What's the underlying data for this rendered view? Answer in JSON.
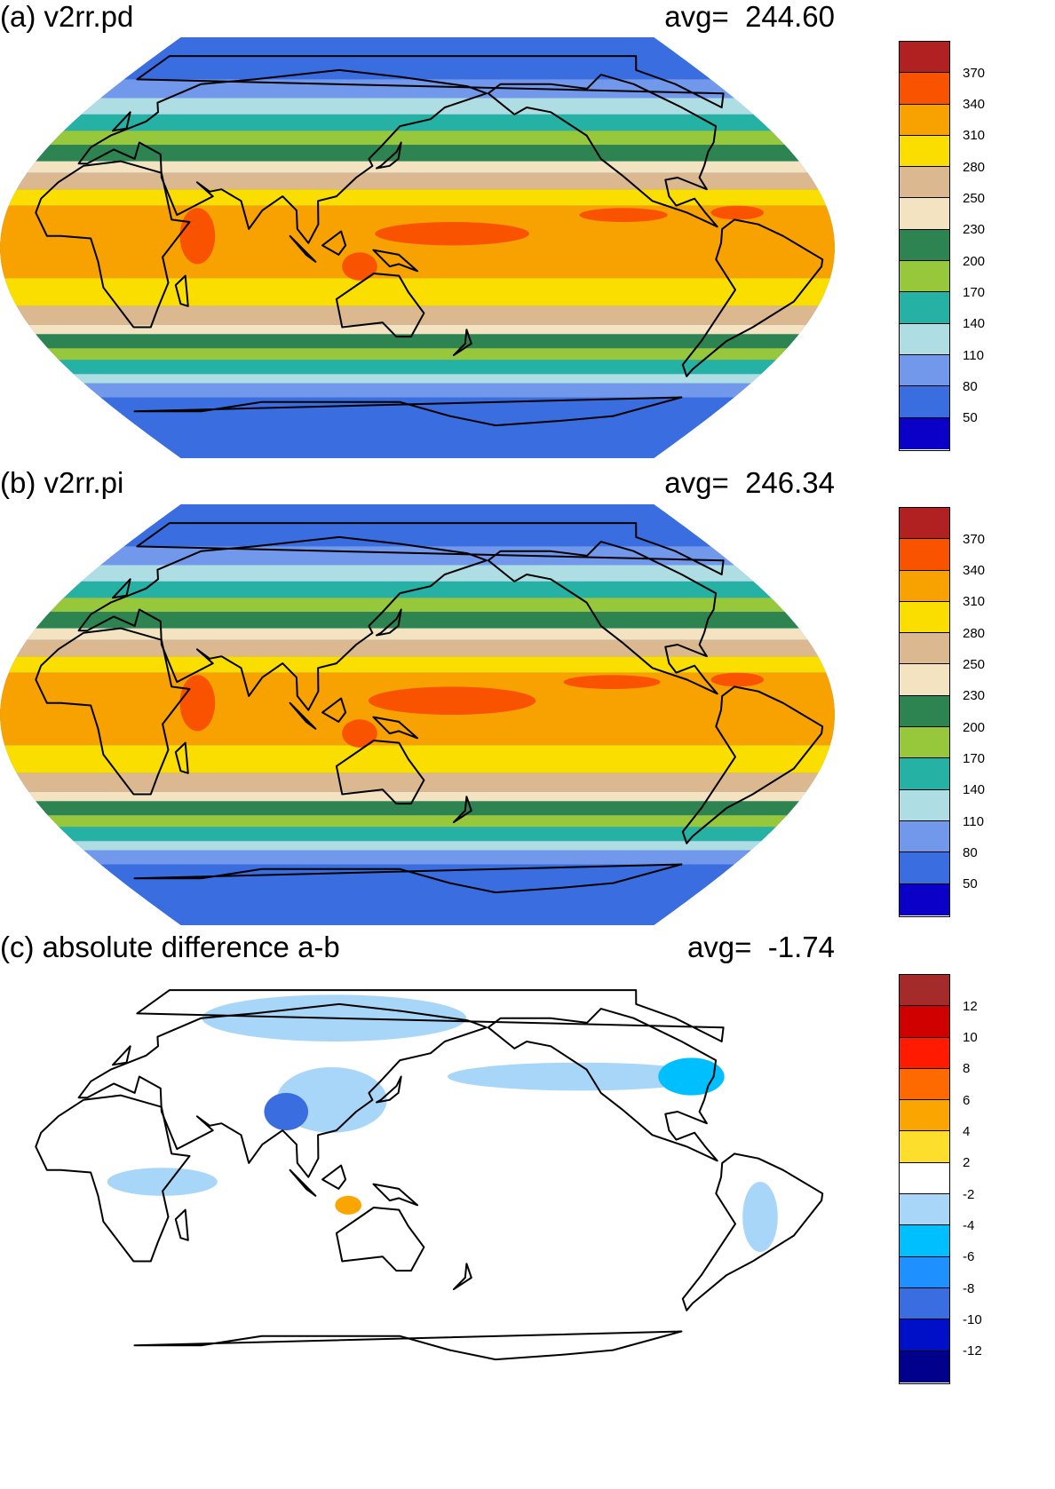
{
  "panels": [
    {
      "title": "(a) v2rr.pd",
      "avg_label": "avg=",
      "avg_value": "244.60",
      "colorbar": {
        "colors": [
          "#0a00c8",
          "#3a6ee0",
          "#7198ea",
          "#aedee3",
          "#25b1a3",
          "#97c83b",
          "#2d8450",
          "#f4e3c0",
          "#dbb88f",
          "#fade00",
          "#f7a200",
          "#f95300",
          "#b12121"
        ],
        "labels": [
          "50",
          "80",
          "110",
          "140",
          "170",
          "200",
          "230",
          "250",
          "280",
          "310",
          "340",
          "370"
        ]
      }
    },
    {
      "title": "(b) v2rr.pi",
      "avg_label": "avg=",
      "avg_value": "246.34",
      "colorbar": {
        "colors": [
          "#0a00c8",
          "#3a6ee0",
          "#7198ea",
          "#aedee3",
          "#25b1a3",
          "#97c83b",
          "#2d8450",
          "#f4e3c0",
          "#dbb88f",
          "#fade00",
          "#f7a200",
          "#f95300",
          "#b12121"
        ],
        "labels": [
          "50",
          "80",
          "110",
          "140",
          "170",
          "200",
          "230",
          "250",
          "280",
          "310",
          "340",
          "370"
        ]
      }
    },
    {
      "title": "(c) absolute difference a-b",
      "avg_label": "avg=",
      "avg_value": "-1.74",
      "colorbar": {
        "colors": [
          "#00008c",
          "#0010c8",
          "#3a6ee0",
          "#1e90ff",
          "#00bfff",
          "#a8d6f8",
          "#ffffff",
          "#fede2c",
          "#fba600",
          "#ff6a00",
          "#ff1a00",
          "#d00000",
          "#a52a2a"
        ],
        "labels": [
          "-12",
          "-10",
          "-8",
          "-6",
          "-4",
          "-2",
          "2",
          "4",
          "6",
          "8",
          "10",
          "12"
        ]
      }
    }
  ],
  "maps": [
    {
      "bands": [
        {
          "lat": 90,
          "color": "#3a6ee0"
        },
        {
          "lat": 72,
          "color": "#7198ea"
        },
        {
          "lat": 64,
          "color": "#aedee3"
        },
        {
          "lat": 57,
          "color": "#25b1a3"
        },
        {
          "lat": 50,
          "color": "#97c83b"
        },
        {
          "lat": 44,
          "color": "#2d8450"
        },
        {
          "lat": 37,
          "color": "#f4e3c0"
        },
        {
          "lat": 32,
          "color": "#dbb88f"
        },
        {
          "lat": 25,
          "color": "#fade00"
        },
        {
          "lat": 18,
          "color": "#f7a200"
        },
        {
          "lat": -13,
          "color": "#fade00"
        },
        {
          "lat": -25,
          "color": "#dbb88f"
        },
        {
          "lat": -33,
          "color": "#f4e3c0"
        },
        {
          "lat": -37,
          "color": "#2d8450"
        },
        {
          "lat": -43,
          "color": "#97c83b"
        },
        {
          "lat": -48,
          "color": "#25b1a3"
        },
        {
          "lat": -54,
          "color": "#aedee3"
        },
        {
          "lat": -58,
          "color": "#7198ea"
        },
        {
          "lat": -64,
          "color": "#3a6ee0"
        }
      ],
      "blobs": [
        {
          "lat": 6,
          "lon": 165,
          "rlat": 5,
          "rlon": 35,
          "color": "#f95300"
        },
        {
          "lat": 14,
          "lon": 240,
          "rlat": 3,
          "rlon": 20,
          "color": "#f95300"
        },
        {
          "lat": 15,
          "lon": 290,
          "rlat": 3,
          "rlon": 12,
          "color": "#f95300"
        },
        {
          "lat": 5,
          "lon": 55,
          "rlat": 12,
          "rlon": 8,
          "color": "#f95300"
        },
        {
          "lat": -8,
          "lon": 125,
          "rlat": 6,
          "rlon": 8,
          "color": "#f95300"
        }
      ]
    },
    {
      "bands": [
        {
          "lat": 90,
          "color": "#3a6ee0"
        },
        {
          "lat": 72,
          "color": "#7198ea"
        },
        {
          "lat": 64,
          "color": "#aedee3"
        },
        {
          "lat": 57,
          "color": "#25b1a3"
        },
        {
          "lat": 50,
          "color": "#97c83b"
        },
        {
          "lat": 44,
          "color": "#2d8450"
        },
        {
          "lat": 37,
          "color": "#f4e3c0"
        },
        {
          "lat": 32,
          "color": "#dbb88f"
        },
        {
          "lat": 25,
          "color": "#fade00"
        },
        {
          "lat": 18,
          "color": "#f7a200"
        },
        {
          "lat": -13,
          "color": "#fade00"
        },
        {
          "lat": -25,
          "color": "#dbb88f"
        },
        {
          "lat": -33,
          "color": "#f4e3c0"
        },
        {
          "lat": -37,
          "color": "#2d8450"
        },
        {
          "lat": -43,
          "color": "#97c83b"
        },
        {
          "lat": -48,
          "color": "#25b1a3"
        },
        {
          "lat": -54,
          "color": "#aedee3"
        },
        {
          "lat": -58,
          "color": "#7198ea"
        },
        {
          "lat": -64,
          "color": "#3a6ee0"
        }
      ],
      "blobs": [
        {
          "lat": 6,
          "lon": 165,
          "rlat": 6,
          "rlon": 38,
          "color": "#f95300"
        },
        {
          "lat": 14,
          "lon": 235,
          "rlat": 3,
          "rlon": 22,
          "color": "#f95300"
        },
        {
          "lat": 15,
          "lon": 290,
          "rlat": 3,
          "rlon": 12,
          "color": "#f95300"
        },
        {
          "lat": 5,
          "lon": 55,
          "rlat": 12,
          "rlon": 8,
          "color": "#f95300"
        },
        {
          "lat": -8,
          "lon": 125,
          "rlat": 6,
          "rlon": 8,
          "color": "#f95300"
        }
      ]
    },
    {
      "bands": [
        {
          "lat": 90,
          "color": "#ffffff"
        }
      ],
      "blobs": [
        {
          "lat": 70,
          "lon": 100,
          "rlat": 10,
          "rlon": 60,
          "color": "#a8d6f8"
        },
        {
          "lat": 45,
          "lon": 230,
          "rlat": 6,
          "rlon": 60,
          "color": "#a8d6f8"
        },
        {
          "lat": 35,
          "lon": 110,
          "rlat": 14,
          "rlon": 25,
          "color": "#a8d6f8"
        },
        {
          "lat": 30,
          "lon": 90,
          "rlat": 8,
          "rlon": 10,
          "color": "#3a6ee0"
        },
        {
          "lat": 45,
          "lon": 285,
          "rlat": 8,
          "rlon": 15,
          "color": "#00bfff"
        },
        {
          "lat": -15,
          "lon": 300,
          "rlat": 15,
          "rlon": 8,
          "color": "#a8d6f8"
        },
        {
          "lat": 0,
          "lon": 40,
          "rlat": 6,
          "rlon": 25,
          "color": "#a8d6f8"
        },
        {
          "lat": -10,
          "lon": 120,
          "rlat": 4,
          "rlon": 6,
          "color": "#fba600"
        }
      ]
    }
  ]
}
